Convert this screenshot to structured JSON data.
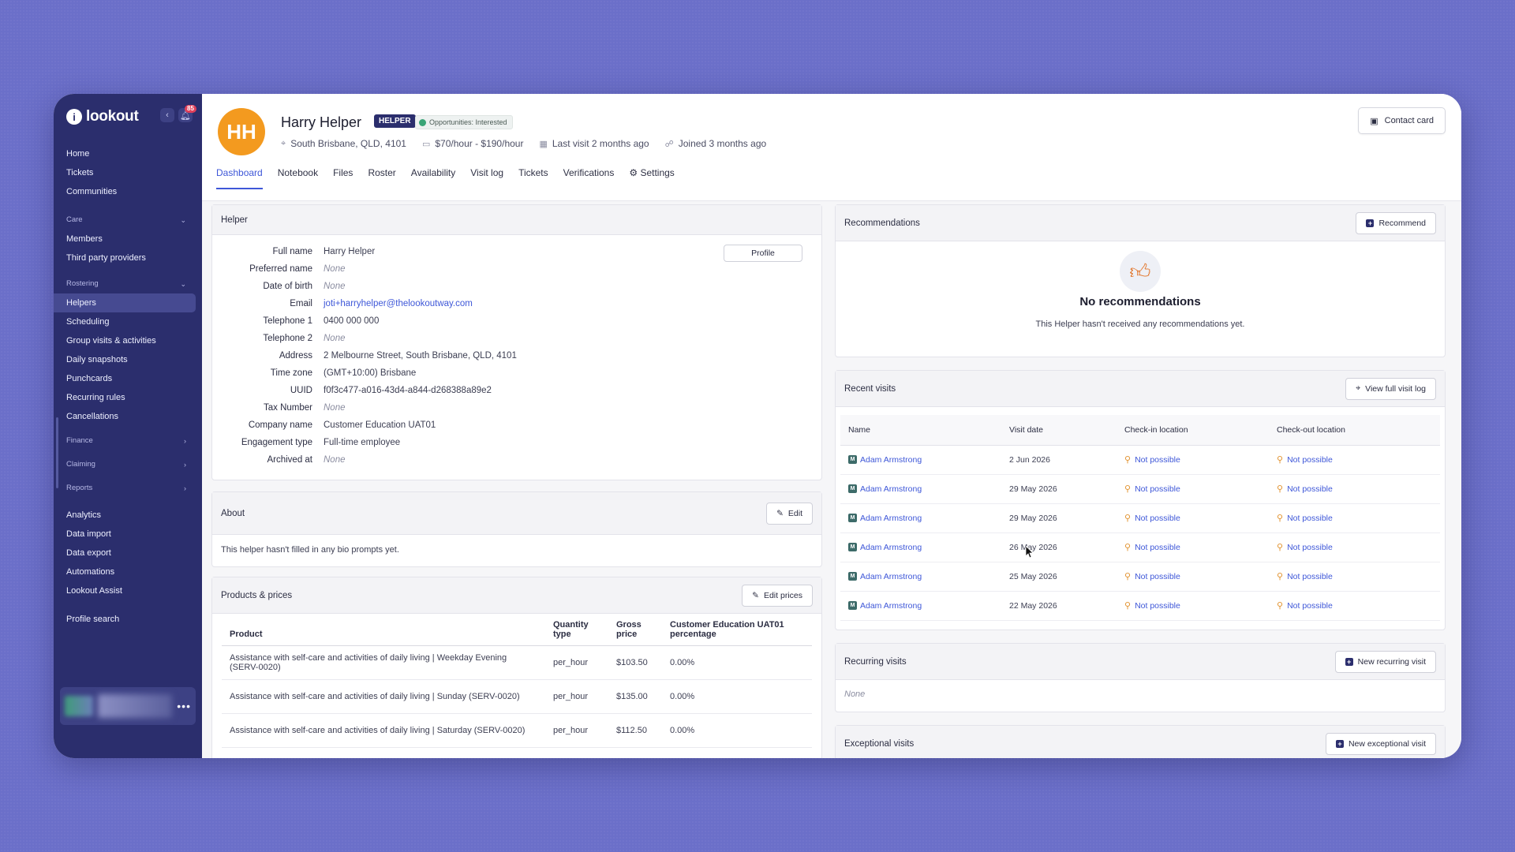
{
  "sidebar": {
    "brand": "lookout",
    "badge": "85",
    "nav_top": [
      "Home",
      "Tickets",
      "Communities"
    ],
    "care": {
      "label": "Care",
      "items": [
        "Members",
        "Third party providers"
      ]
    },
    "rostering": {
      "label": "Rostering",
      "items": [
        "Helpers",
        "Scheduling",
        "Group visits & activities",
        "Daily snapshots",
        "Punchcards",
        "Recurring rules",
        "Cancellations"
      ]
    },
    "collapsed_sections": [
      "Finance",
      "Claiming",
      "Reports"
    ],
    "nav_bottom": [
      "Analytics",
      "Data import",
      "Data export",
      "Automations",
      "Lookout Assist"
    ],
    "profile_search": "Profile search",
    "user_more": "•••"
  },
  "header": {
    "initials": "HH",
    "name": "Harry Helper",
    "role": "HELPER",
    "opportunity": "Opportunities: Interested",
    "location": "South Brisbane, QLD, 4101",
    "rate": "$70/hour - $190/hour",
    "last_visit": "Last visit 2 months ago",
    "joined": "Joined 3 months ago",
    "contact_card": "Contact card"
  },
  "tabs": [
    "Dashboard",
    "Notebook",
    "Files",
    "Roster",
    "Availability",
    "Visit log",
    "Tickets",
    "Verifications",
    "Settings"
  ],
  "helper": {
    "title": "Helper",
    "profile_btn": "Profile",
    "fields": [
      {
        "k": "Full name",
        "v": "Harry Helper"
      },
      {
        "k": "Preferred name",
        "v": "None"
      },
      {
        "k": "Date of birth",
        "v": "None"
      },
      {
        "k": "Email",
        "v": "joti+harryhelper@thelookoutway.com"
      },
      {
        "k": "Telephone 1",
        "v": "0400 000 000"
      },
      {
        "k": "Telephone 2",
        "v": "None"
      },
      {
        "k": "Address",
        "v": "2 Melbourne Street, South Brisbane, QLD, 4101"
      },
      {
        "k": "Time zone",
        "v": "(GMT+10:00) Brisbane"
      },
      {
        "k": "UUID",
        "v": "f0f3c477-a016-43d4-a844-d268388a89e2"
      },
      {
        "k": "Tax Number",
        "v": "None"
      },
      {
        "k": "Company name",
        "v": "Customer Education UAT01"
      },
      {
        "k": "Engagement type",
        "v": "Full-time employee"
      },
      {
        "k": "Archived at",
        "v": "None"
      }
    ]
  },
  "about": {
    "title": "About",
    "edit": "Edit",
    "text": "This helper hasn't filled in any bio prompts yet."
  },
  "products": {
    "title": "Products & prices",
    "edit": "Edit prices",
    "columns": [
      "Product",
      "Quantity type",
      "Gross price",
      "Customer Education UAT01 percentage"
    ],
    "rows": [
      [
        "Assistance with self-care and activities of daily living | Weekday Evening (SERV-0020)",
        "per_hour",
        "$103.50",
        "0.00%"
      ],
      [
        "Assistance with self-care and activities of daily living | Sunday (SERV-0020)",
        "per_hour",
        "$135.00",
        "0.00%"
      ],
      [
        "Assistance with self-care and activities of daily living | Saturday (SERV-0020)",
        "per_hour",
        "$112.50",
        "0.00%"
      ]
    ]
  },
  "recommendations": {
    "title": "Recommendations",
    "btn": "Recommend",
    "empty_title": "No recommendations",
    "empty_text": "This Helper hasn't received any recommendations yet."
  },
  "recent_visits": {
    "title": "Recent visits",
    "btn": "View full visit log",
    "columns": [
      "Name",
      "Visit date",
      "Check-in location",
      "Check-out location"
    ],
    "rows": [
      [
        "Adam Armstrong",
        "2 Jun 2026",
        "Not possible",
        "Not possible"
      ],
      [
        "Adam Armstrong",
        "29 May 2026",
        "Not possible",
        "Not possible"
      ],
      [
        "Adam Armstrong",
        "29 May 2026",
        "Not possible",
        "Not possible"
      ],
      [
        "Adam Armstrong",
        "26 May 2026",
        "Not possible",
        "Not possible"
      ],
      [
        "Adam Armstrong",
        "25 May 2026",
        "Not possible",
        "Not possible"
      ],
      [
        "Adam Armstrong",
        "22 May 2026",
        "Not possible",
        "Not possible"
      ]
    ]
  },
  "recurring": {
    "title": "Recurring visits",
    "btn": "New recurring visit",
    "value": "None"
  },
  "exceptional": {
    "title": "Exceptional visits",
    "btn": "New exceptional visit"
  },
  "colors": {
    "sidebar": "#2b2e6d",
    "accent": "#3e57d8",
    "avatar": "#f39a1f",
    "background": "#6b6fc9"
  }
}
